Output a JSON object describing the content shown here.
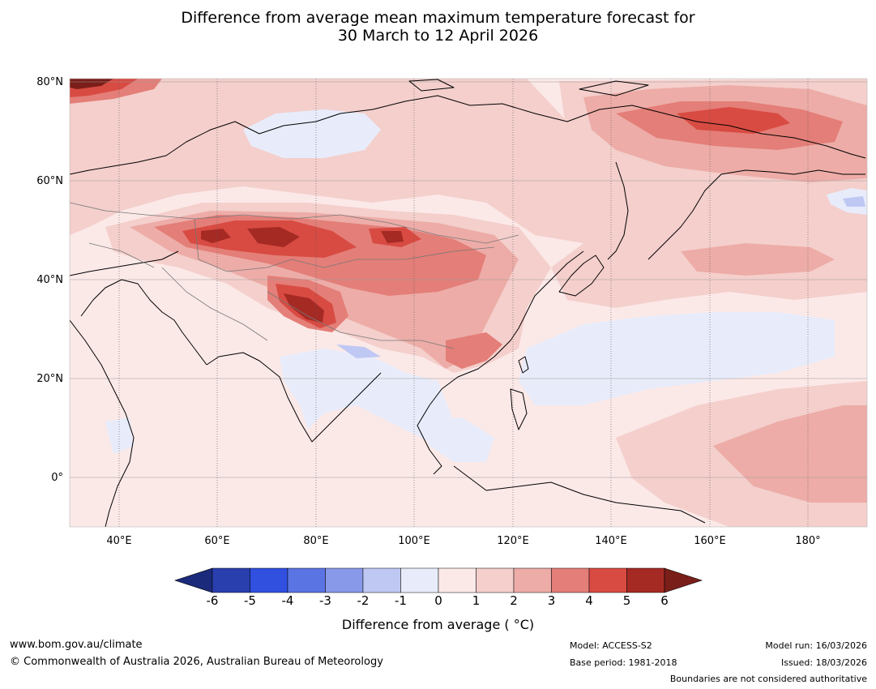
{
  "title": {
    "line1": "Difference from average mean maximum temperature forecast for",
    "line2": "30 March to 12 April 2026"
  },
  "map": {
    "lat_labels": [
      "80°N",
      "60°N",
      "40°N",
      "20°N",
      "0°"
    ],
    "lon_labels": [
      "40°E",
      "60°E",
      "80°E",
      "100°E",
      "120°E",
      "140°E",
      "160°E",
      "180°"
    ],
    "extent": {
      "lon_min": 30,
      "lon_max": 191,
      "lat_min": -10,
      "lat_max": 80
    }
  },
  "colorbar": {
    "ticks": [
      "-6",
      "-5",
      "-4",
      "-3",
      "-2",
      "-1",
      "0",
      "1",
      "2",
      "3",
      "4",
      "5",
      "6"
    ],
    "colors": [
      "#2a3fae",
      "#3150df",
      "#5b74e4",
      "#8899ea",
      "#bfc8f3",
      "#e8ecfa",
      "#fbe9e8",
      "#f4cfcc",
      "#edaca7",
      "#e47e78",
      "#d84b42",
      "#a52a24"
    ],
    "under_color": "#1b2a7a",
    "over_color": "#7a1e19",
    "label": "Difference from average ( °C)"
  },
  "footer": {
    "website": "www.bom.gov.au/climate",
    "copyright": "© Commonwealth of Australia 2026, Australian Bureau of Meteorology",
    "model": "Model: ACCESS-S2",
    "base_period": "Base period: 1981-2018",
    "model_run": "Model run: 16/03/2026",
    "issued": "Issued: 18/03/2026",
    "disclaimer": "Boundaries are not considered authoritative"
  }
}
